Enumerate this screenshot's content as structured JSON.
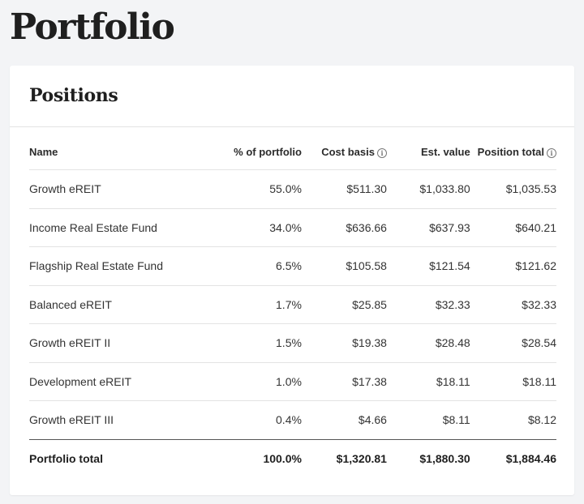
{
  "page": {
    "title": "Portfolio"
  },
  "positions": {
    "title": "Positions",
    "columns": {
      "name": "Name",
      "pct": "% of portfolio",
      "cost_basis": "Cost basis",
      "est_value": "Est. value",
      "position_total": "Position total"
    },
    "rows": [
      {
        "name": "Growth eREIT",
        "pct": "55.0%",
        "cost_basis": "$511.30",
        "est_value": "$1,033.80",
        "position_total": "$1,035.53"
      },
      {
        "name": "Income Real Estate Fund",
        "pct": "34.0%",
        "cost_basis": "$636.66",
        "est_value": "$637.93",
        "position_total": "$640.21"
      },
      {
        "name": "Flagship Real Estate Fund",
        "pct": "6.5%",
        "cost_basis": "$105.58",
        "est_value": "$121.54",
        "position_total": "$121.62"
      },
      {
        "name": "Balanced eREIT",
        "pct": "1.7%",
        "cost_basis": "$25.85",
        "est_value": "$32.33",
        "position_total": "$32.33"
      },
      {
        "name": "Growth eREIT II",
        "pct": "1.5%",
        "cost_basis": "$19.38",
        "est_value": "$28.48",
        "position_total": "$28.54"
      },
      {
        "name": "Development eREIT",
        "pct": "1.0%",
        "cost_basis": "$17.38",
        "est_value": "$18.11",
        "position_total": "$18.11"
      },
      {
        "name": "Growth eREIT III",
        "pct": "0.4%",
        "cost_basis": "$4.66",
        "est_value": "$8.11",
        "position_total": "$8.12"
      }
    ],
    "total": {
      "name": "Portfolio total",
      "pct": "100.0%",
      "cost_basis": "$1,320.81",
      "est_value": "$1,880.30",
      "position_total": "$1,884.46"
    },
    "icons": {
      "info": "info-icon"
    }
  }
}
